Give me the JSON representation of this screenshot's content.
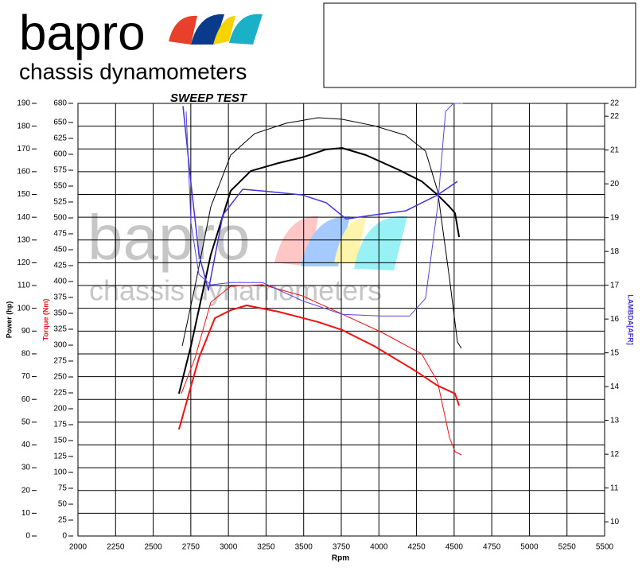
{
  "header": {
    "brand": "bapro",
    "tagline": "chassis dynamometers"
  },
  "chart_data": {
    "type": "line",
    "title": "SWEEP TEST",
    "x_label": "Rpm",
    "y_label": "Power (hp)",
    "y2_label": "Torque (Nm)",
    "y3_label": "LAMBDA[AFR]",
    "xlim": [
      2000,
      5500
    ],
    "xticks": [
      2000,
      2250,
      2500,
      2750,
      3000,
      3250,
      3500,
      3750,
      4000,
      4250,
      4500,
      4750,
      5000,
      5250,
      5500
    ],
    "ylim": [
      0,
      190
    ],
    "yticks": [
      0,
      10,
      20,
      30,
      40,
      50,
      60,
      70,
      80,
      90,
      100,
      110,
      120,
      130,
      140,
      150,
      160,
      170,
      180,
      190
    ],
    "y2lim": [
      0,
      680
    ],
    "y2ticks": [
      0,
      25,
      50,
      75,
      100,
      125,
      150,
      175,
      200,
      225,
      250,
      275,
      300,
      325,
      350,
      375,
      400,
      425,
      450,
      475,
      500,
      525,
      550,
      575,
      600,
      625,
      650,
      680
    ],
    "y3lim": [
      9.58,
      22.38
    ],
    "y3ticks": [
      10,
      11,
      12,
      13,
      14,
      15,
      16,
      17,
      18,
      19,
      20,
      21,
      22,
      {
        "value": 22.38,
        "label": "22"
      }
    ],
    "grid": true,
    "series": [
      {
        "axis": "y",
        "color": "#000000",
        "width": 2,
        "x": [
          2671,
          2751,
          2883,
          3015,
          3148,
          3333,
          3491,
          3650,
          3756,
          3914,
          4126,
          4284,
          4390,
          4469,
          4506,
          4533
        ],
        "values": [
          62.5,
          83.5,
          123.6,
          151.6,
          160.3,
          163.8,
          166.3,
          169.8,
          170.4,
          167.3,
          161,
          155.8,
          149.8,
          144.6,
          141.8,
          131.3
        ]
      },
      {
        "axis": "y",
        "color": "#000000",
        "width": 1,
        "x": [
          2693,
          2778,
          2883,
          3015,
          3174,
          3385,
          3597,
          3756,
          3967,
          4178,
          4310,
          4390,
          4469,
          4522,
          4548
        ],
        "values": [
          83.5,
          109.7,
          144.6,
          167.3,
          176.7,
          181.3,
          183.7,
          183,
          180.2,
          176,
          169,
          151.6,
          113.2,
          85.2,
          82.4
        ]
      },
      {
        "axis": "y2",
        "color": "#ee1111",
        "width": 2,
        "x": [
          2671,
          2708,
          2804,
          2910,
          3015,
          3121,
          3333,
          3597,
          3756,
          3967,
          4231,
          4390,
          4506,
          4533
        ],
        "values": [
          167.5,
          198.8,
          280,
          342.5,
          355,
          362.5,
          352.5,
          336.3,
          323.8,
          298.8,
          261.3,
          236.3,
          223.8,
          205
        ]
      },
      {
        "axis": "y2",
        "color": "#ee1111",
        "width": 1,
        "x": [
          2687,
          2778,
          2883,
          3015,
          3227,
          3491,
          3756,
          4020,
          4284,
          4390,
          4469,
          4506,
          4548
        ],
        "values": [
          223.8,
          280,
          367.5,
          392.5,
          395,
          377.5,
          348.8,
          320,
          286.3,
          242.5,
          155,
          132.5,
          127.5
        ]
      },
      {
        "axis": "y3",
        "color": "#4433dd",
        "width": 1.5,
        "x": [
          2698,
          2751,
          2804,
          2867,
          2963,
          3095,
          3227,
          3491,
          3650,
          3782,
          3967,
          4178,
          4390,
          4522
        ],
        "values": [
          22.3,
          20.02,
          17.91,
          16.85,
          19.08,
          19.84,
          19.79,
          19.67,
          19.44,
          18.96,
          19.08,
          19.2,
          19.67,
          20.07
        ]
      },
      {
        "axis": "y3",
        "color": "#5544dd",
        "width": 1,
        "x": [
          2719,
          2751,
          2804,
          2883,
          3015,
          3227,
          3491,
          3756,
          4020,
          4204,
          4310,
          4390,
          4443,
          4495,
          4559
        ],
        "values": [
          22.14,
          18.85,
          17.32,
          17.01,
          17.08,
          17.08,
          16.54,
          16.14,
          16.09,
          16.09,
          16.61,
          19.32,
          22.14,
          22.38,
          22.38
        ]
      }
    ]
  }
}
